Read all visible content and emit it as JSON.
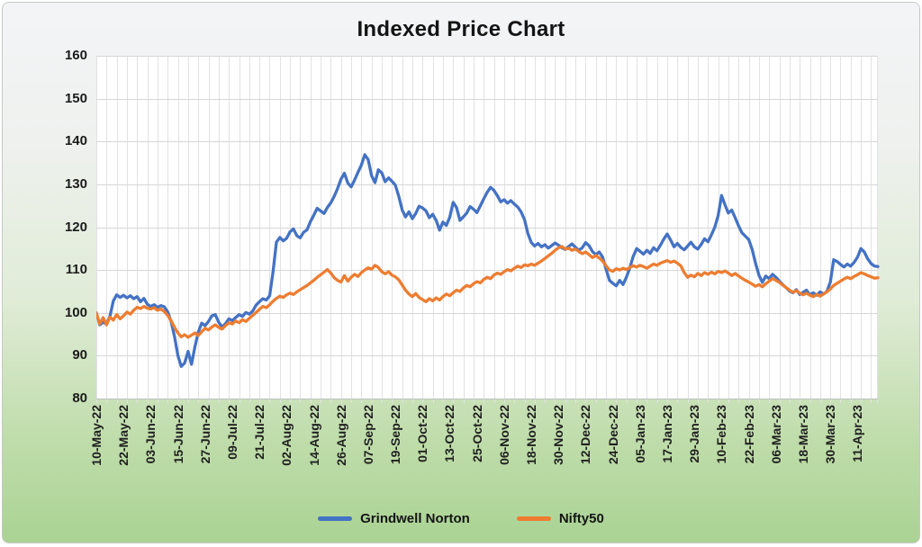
{
  "title": "Indexed Price Chart",
  "legend": [
    {
      "label": "Grindwell Norton",
      "color": "#4472C4"
    },
    {
      "label": "Nifty50",
      "color": "#ED7D31"
    }
  ],
  "colors": {
    "series_blue": "#4472C4",
    "series_orange": "#ED7D31",
    "grid_vertical": "#e2e2e6",
    "grid_horizontal": "#d6d6d6",
    "axis_line": "#bfbfbf",
    "plot_background": "#ffffff",
    "text": "#1a1a1a"
  },
  "chart_data": {
    "type": "line",
    "title": "Indexed Price Chart",
    "xlabel": "",
    "ylabel": "",
    "ylim": [
      80,
      160
    ],
    "y_ticks": [
      80,
      90,
      100,
      110,
      120,
      130,
      140,
      150,
      160
    ],
    "grid": true,
    "legend_position": "bottom",
    "x_tick_every": 8,
    "x_tick_labels": [
      "10-May-22",
      "22-May-22",
      "03-Jun-22",
      "15-Jun-22",
      "27-Jun-22",
      "09-Jul-22",
      "21-Jul-22",
      "02-Aug-22",
      "14-Aug-22",
      "26-Aug-22",
      "07-Sep-22",
      "19-Sep-22",
      "01-Oct-22",
      "13-Oct-22",
      "25-Oct-22",
      "06-Nov-22",
      "18-Nov-22",
      "30-Nov-22",
      "12-Dec-22",
      "24-Dec-22",
      "05-Jan-23",
      "17-Jan-23",
      "29-Jan-23",
      "10-Feb-23",
      "22-Feb-23",
      "06-Mar-23",
      "18-Mar-23",
      "30-Mar-23",
      "11-Apr-23"
    ],
    "series": [
      {
        "name": "Grindwell Norton",
        "color": "#4472C4",
        "values": [
          100,
          97.2,
          97.8,
          97.4,
          99.2,
          102.8,
          104.2,
          103.6,
          104.1,
          103.5,
          104.0,
          103.3,
          103.8,
          102.6,
          103.4,
          102.0,
          101.5,
          101.9,
          101.3,
          101.7,
          101.4,
          100.2,
          98.0,
          94.5,
          90.0,
          87.5,
          88.3,
          91.0,
          88.0,
          92.0,
          95.5,
          97.6,
          97.0,
          98.0,
          99.3,
          99.6,
          97.8,
          96.7,
          97.5,
          98.6,
          98.2,
          98.9,
          99.6,
          99.2,
          100.1,
          99.7,
          100.4,
          101.8,
          102.6,
          103.3,
          103.0,
          104.0,
          109.5,
          116.5,
          117.6,
          116.8,
          117.4,
          118.9,
          119.6,
          118.0,
          117.5,
          118.8,
          119.4,
          121.3,
          122.8,
          124.4,
          123.8,
          123.2,
          124.6,
          125.7,
          127.2,
          129.0,
          131.2,
          132.6,
          130.3,
          129.4,
          131.0,
          132.8,
          134.5,
          136.9,
          135.8,
          132.0,
          130.4,
          133.4,
          132.7,
          130.6,
          131.5,
          130.7,
          129.8,
          127.2,
          124.0,
          122.4,
          123.6,
          122.0,
          123.2,
          124.9,
          124.5,
          123.8,
          122.2,
          123.0,
          121.6,
          119.3,
          121.2,
          120.4,
          122.3,
          125.8,
          124.6,
          121.6,
          122.4,
          123.3,
          124.8,
          124.2,
          123.4,
          125.0,
          126.6,
          128.1,
          129.3,
          128.6,
          127.4,
          125.9,
          126.4,
          125.6,
          126.2,
          125.4,
          124.7,
          123.6,
          121.8,
          118.5,
          116.4,
          115.6,
          116.2,
          115.4,
          115.9,
          115.1,
          115.7,
          116.3,
          115.8,
          115.2,
          114.8,
          115.5,
          116.1,
          115.3,
          114.6,
          115.2,
          116.4,
          115.7,
          114.3,
          113.6,
          114.2,
          113.0,
          110.2,
          107.6,
          106.9,
          106.3,
          107.6,
          106.6,
          108.3,
          110.5,
          113.2,
          115.0,
          114.4,
          113.7,
          114.6,
          113.9,
          115.2,
          114.5,
          115.8,
          117.2,
          118.4,
          117.0,
          115.4,
          116.2,
          115.3,
          114.7,
          115.6,
          116.5,
          115.4,
          114.9,
          116.0,
          117.3,
          116.6,
          118.2,
          120.0,
          122.7,
          127.4,
          125.2,
          123.3,
          124.0,
          122.2,
          120.3,
          118.7,
          117.9,
          117.1,
          114.8,
          111.6,
          108.8,
          107.1,
          108.6,
          108.0,
          109.0,
          108.3,
          107.4,
          106.6,
          105.9,
          105.1,
          104.7,
          105.4,
          104.3,
          104.8,
          105.3,
          104.2,
          104.7,
          104.1,
          104.9,
          104.4,
          105.0,
          107.2,
          112.4,
          112.0,
          111.3,
          110.7,
          111.4,
          110.9,
          111.8,
          113.0,
          115.0,
          114.2,
          112.6,
          111.5,
          110.9,
          110.8
        ]
      },
      {
        "name": "Nifty50",
        "color": "#ED7D31",
        "values": [
          100,
          97.4,
          98.9,
          97.2,
          99.0,
          98.3,
          99.6,
          98.6,
          99.3,
          100.2,
          99.7,
          100.6,
          101.3,
          101.0,
          101.5,
          101.1,
          100.9,
          101.2,
          100.6,
          100.9,
          100.3,
          99.4,
          98.2,
          96.6,
          95.3,
          94.4,
          94.9,
          94.3,
          94.8,
          95.3,
          94.7,
          95.6,
          96.4,
          96.0,
          96.7,
          97.2,
          96.6,
          96.2,
          97.0,
          97.7,
          97.4,
          98.1,
          97.7,
          98.4,
          98.0,
          98.7,
          99.4,
          100.1,
          100.8,
          101.5,
          101.2,
          101.9,
          102.7,
          103.4,
          103.9,
          103.6,
          104.2,
          104.6,
          104.3,
          104.9,
          105.4,
          105.9,
          106.4,
          107.0,
          107.6,
          108.3,
          108.9,
          109.5,
          110.1,
          109.3,
          108.2,
          107.6,
          107.2,
          108.7,
          107.4,
          108.3,
          109.0,
          108.5,
          109.4,
          110.0,
          110.5,
          110.2,
          111.1,
          110.6,
          109.6,
          109.1,
          109.6,
          108.8,
          108.4,
          107.7,
          106.5,
          105.3,
          104.4,
          103.8,
          104.5,
          103.6,
          103.1,
          102.6,
          103.3,
          102.8,
          103.5,
          103.0,
          103.8,
          104.4,
          104.0,
          104.7,
          105.3,
          105.0,
          105.8,
          106.4,
          106.1,
          106.8,
          107.3,
          107.0,
          107.8,
          108.3,
          108.0,
          108.8,
          109.3,
          109.0,
          109.6,
          110.1,
          109.8,
          110.4,
          110.9,
          110.6,
          111.2,
          111.0,
          111.4,
          111.1,
          111.6,
          112.1,
          112.7,
          113.3,
          113.9,
          114.6,
          115.2,
          115.5,
          114.9,
          115.1,
          114.6,
          114.9,
          114.3,
          113.8,
          114.2,
          113.6,
          112.9,
          113.4,
          112.8,
          112.1,
          111.0,
          110.0,
          109.7,
          110.3,
          110.0,
          110.4,
          110.1,
          110.6,
          111.0,
          110.7,
          111.1,
          110.8,
          110.4,
          110.9,
          111.4,
          111.1,
          111.6,
          111.9,
          112.2,
          111.8,
          112.1,
          111.6,
          111.0,
          109.4,
          108.3,
          108.8,
          108.4,
          109.2,
          108.7,
          109.4,
          109.0,
          109.5,
          109.1,
          109.7,
          109.4,
          109.8,
          109.3,
          108.7,
          109.2,
          108.6,
          108.1,
          107.6,
          107.2,
          106.7,
          106.2,
          106.6,
          106.1,
          106.8,
          107.4,
          108.0,
          107.6,
          107.1,
          106.5,
          105.9,
          105.3,
          104.8,
          105.2,
          104.6,
          104.2,
          104.6,
          104.1,
          103.8,
          104.3,
          103.9,
          104.4,
          104.9,
          105.6,
          106.4,
          106.9,
          107.4,
          107.9,
          108.3,
          108.0,
          108.5,
          108.9,
          109.4,
          109.1,
          108.7,
          108.4,
          108.1,
          108.2
        ]
      }
    ]
  }
}
